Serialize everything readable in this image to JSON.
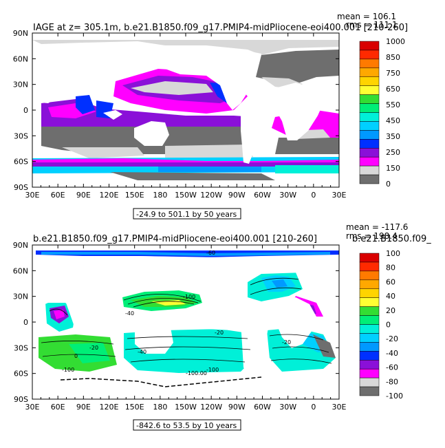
{
  "panels": [
    {
      "title": "IAGE at z= 305.1m, b.e21.B1850.f09_g17.PMIP4-midPliocene-eoi400.001 [210-260]",
      "mean_label": "mean = 106.1",
      "rms_label": "rms = 111.1",
      "range_label": "-24.9 to 501.1 by 50 years",
      "colorbar": {
        "labels": [
          "1000",
          "850",
          "750",
          "650",
          "550",
          "450",
          "350",
          "250",
          "150",
          "0"
        ],
        "colors": [
          "#d90000",
          "#ff2a00",
          "#ff7a00",
          "#ffa800",
          "#ffd400",
          "#ffff33",
          "#33dd33",
          "#00ee77",
          "#00f0d8",
          "#00d0ff",
          "#0099ff",
          "#0030ff",
          "#8a10d8",
          "#ff00ff",
          "#d8d8d8",
          "#6e6e6e"
        ]
      }
    },
    {
      "title": "b.e21.B1850.f09_g17.PMIP4-midPliocene-eoi400.001 [210-260]",
      "overlap_title": "b.e21.B1850.f09_",
      "mean_label": "mean = -117.6",
      "rms_label": "rms = 198.4",
      "range_label": "-842.6 to 53.5 by 10 years",
      "colorbar": {
        "labels": [
          "100",
          "80",
          "60",
          "40",
          "20",
          "0",
          "-20",
          "-40",
          "-60",
          "-80",
          "-100"
        ],
        "colors": [
          "#d90000",
          "#ff2a00",
          "#ff7a00",
          "#ffa800",
          "#ffd400",
          "#ffff33",
          "#33dd33",
          "#00ee77",
          "#00f0d8",
          "#00d0ff",
          "#0099ff",
          "#0030ff",
          "#8a10d8",
          "#ff00ff",
          "#d8d8d8",
          "#6e6e6e"
        ]
      },
      "contour_labels": [
        "-60",
        "-100",
        "-40",
        "-20",
        "-40",
        "-100",
        "-20",
        "0",
        "-20",
        "-100.00",
        "-100"
      ]
    }
  ],
  "chart_data": [
    {
      "type": "heatmap",
      "title": "IAGE at z= 305.1m, b.e21.B1850.f09_g17.PMIP4-midPliocene-eoi400.001 [210-260]",
      "x_ticks": [
        "30E",
        "60E",
        "90E",
        "120E",
        "150E",
        "180",
        "150W",
        "120W",
        "90W",
        "60W",
        "30W",
        "0",
        "30E"
      ],
      "y_ticks": [
        "90N",
        "60N",
        "30N",
        "0",
        "30S",
        "60S",
        "90S"
      ],
      "mean": 106.1,
      "rms": 111.1,
      "range": [
        -24.9,
        501.1
      ],
      "interval": 50,
      "units": "years",
      "colorbar_labels": [
        1000,
        850,
        750,
        650,
        550,
        450,
        350,
        250,
        150,
        0
      ]
    },
    {
      "type": "heatmap",
      "title": "b.e21.B1850.f09_g17.PMIP4-midPliocene-eoi400.001 [210-260]",
      "x_ticks": [
        "30E",
        "60E",
        "90E",
        "120E",
        "150E",
        "180",
        "150W",
        "120W",
        "90W",
        "60W",
        "30W",
        "0",
        "30E"
      ],
      "y_ticks": [
        "90N",
        "60N",
        "30N",
        "0",
        "30S",
        "60S",
        "90S"
      ],
      "mean": -117.6,
      "rms": 198.4,
      "range": [
        -842.6,
        53.5
      ],
      "interval": 10,
      "units": "years",
      "colorbar_labels": [
        100,
        80,
        60,
        40,
        20,
        0,
        -20,
        -40,
        -60,
        -80,
        -100
      ]
    }
  ]
}
